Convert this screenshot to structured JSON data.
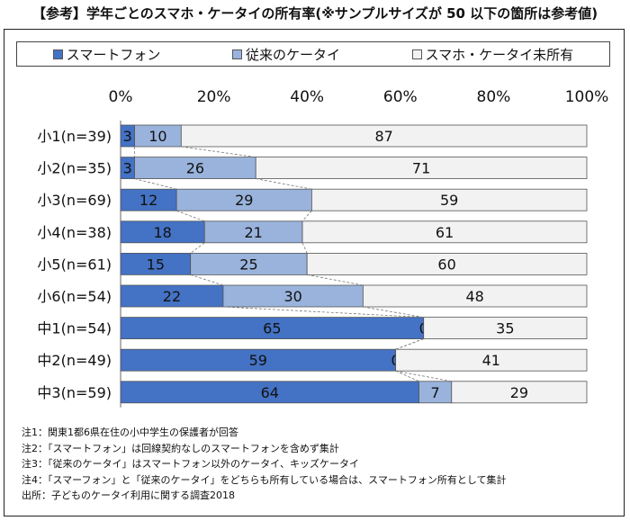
{
  "title": "【参考】学年ごとのスマホ・ケータイの所有率(※サンプルサイズが 50 以下の箇所は参考値)",
  "colors": {
    "smartphone": "#4472c4",
    "keitai": "#99b3dc",
    "none": "#f2f2f2",
    "border": "#555555"
  },
  "chart_data": {
    "type": "bar",
    "orientation": "horizontal",
    "stacked": true,
    "percent_axis": true,
    "xlim": [
      0,
      100
    ],
    "x_ticks": [
      "0%",
      "20%",
      "40%",
      "60%",
      "80%",
      "100%"
    ],
    "legend_position": "top",
    "categories": [
      "小1(n=39)",
      "小2(n=35)",
      "小3(n=69)",
      "小4(n=38)",
      "小5(n=61)",
      "小6(n=54)",
      "中1(n=54)",
      "中2(n=49)",
      "中3(n=59)"
    ],
    "series": [
      {
        "name": "スマートフォン",
        "values": [
          3,
          3,
          12,
          18,
          15,
          22,
          65,
          59,
          64
        ]
      },
      {
        "name": "従来のケータイ",
        "values": [
          10,
          26,
          29,
          21,
          25,
          30,
          0,
          0,
          7
        ]
      },
      {
        "name": "スマホ・ケータイ未所有",
        "values": [
          87,
          71,
          59,
          61,
          60,
          48,
          35,
          41,
          29
        ]
      }
    ]
  },
  "notes": [
    "注1：関東1都6県在住の小中学生の保護者が回答",
    "注2：「スマートフォン」は回線契約なしのスマートフォンを含めず集計",
    "注3：「従来のケータイ」はスマートフォン以外のケータイ、キッズケータイ",
    "注4：「スマーフォン」と「従来のケータイ」をどちらも所有している場合は、スマートフォン所有として集計",
    "出所：子どものケータイ利用に関する調査2018"
  ]
}
